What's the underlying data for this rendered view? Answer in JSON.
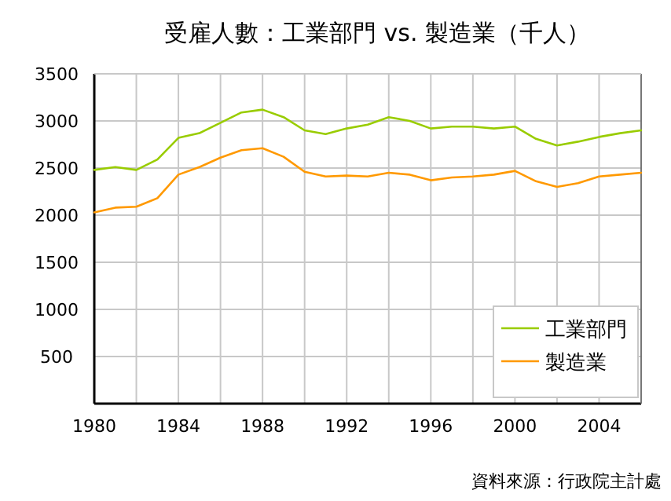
{
  "chart_data": {
    "type": "line",
    "title": "受雇人數：工業部門 vs. 製造業（千人）",
    "x": [
      1980,
      1981,
      1982,
      1983,
      1984,
      1985,
      1986,
      1987,
      1988,
      1989,
      1990,
      1991,
      1992,
      1993,
      1994,
      1995,
      1996,
      1997,
      1998,
      1999,
      2000,
      2001,
      2002,
      2003,
      2004,
      2005,
      2006
    ],
    "series": [
      {
        "name": "工業部門",
        "color": "#99cc00",
        "values": [
          2480,
          2510,
          2480,
          2590,
          2820,
          2870,
          2980,
          3090,
          3120,
          3040,
          2900,
          2860,
          2920,
          2960,
          3040,
          3000,
          2920,
          2940,
          2940,
          2920,
          2940,
          2810,
          2740,
          2780,
          2830,
          2870,
          2900
        ]
      },
      {
        "name": "製造業",
        "color": "#ff9900",
        "values": [
          2030,
          2080,
          2090,
          2180,
          2430,
          2510,
          2610,
          2690,
          2710,
          2620,
          2460,
          2410,
          2420,
          2410,
          2450,
          2430,
          2370,
          2400,
          2410,
          2430,
          2470,
          2360,
          2300,
          2340,
          2410,
          2430,
          2450
        ]
      }
    ],
    "xlim": [
      1980,
      2006
    ],
    "xticks": [
      1980,
      {
        "value": 1982,
        "label": null
      },
      1984,
      {
        "value": 1986,
        "label": null
      },
      1988,
      {
        "value": 1990,
        "label": null
      },
      1992,
      {
        "value": 1994,
        "label": null
      },
      1996,
      {
        "value": 1998,
        "label": null
      },
      2000,
      {
        "value": 2002,
        "label": null
      },
      2004,
      {
        "value": 2006,
        "label": null
      }
    ],
    "ylim": [
      0,
      3500
    ],
    "yticks": [
      {
        "value": 0,
        "label": null
      },
      500,
      1000,
      1500,
      2000,
      2500,
      3000,
      3500
    ],
    "grid": true,
    "legend": "bottom right",
    "marker": "none",
    "line_style": "solid",
    "annotations": [
      "資料來源：行政院主計處"
    ]
  }
}
